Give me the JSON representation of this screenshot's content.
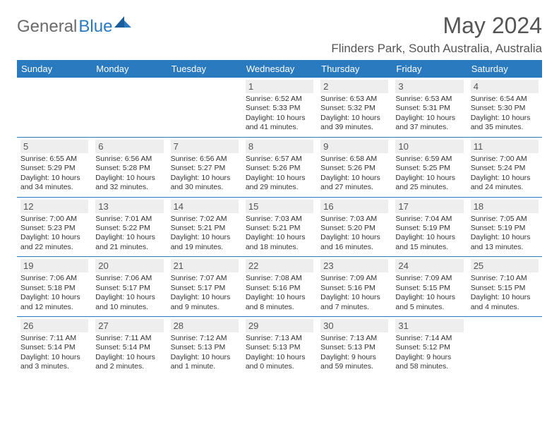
{
  "logo": {
    "general": "General",
    "blue": "Blue"
  },
  "title": "May 2024",
  "location": "Flinders Park, South Australia, Australia",
  "columns": [
    "Sunday",
    "Monday",
    "Tuesday",
    "Wednesday",
    "Thursday",
    "Friday",
    "Saturday"
  ],
  "colors": {
    "header_bg": "#2a7ac0",
    "header_text": "#ffffff",
    "daynum_bg": "#eeeeee",
    "text": "#333333"
  },
  "weeks": [
    [
      null,
      null,
      null,
      {
        "n": "1",
        "sr": "6:52 AM",
        "ss": "5:33 PM",
        "dl": "10 hours and 41 minutes."
      },
      {
        "n": "2",
        "sr": "6:53 AM",
        "ss": "5:32 PM",
        "dl": "10 hours and 39 minutes."
      },
      {
        "n": "3",
        "sr": "6:53 AM",
        "ss": "5:31 PM",
        "dl": "10 hours and 37 minutes."
      },
      {
        "n": "4",
        "sr": "6:54 AM",
        "ss": "5:30 PM",
        "dl": "10 hours and 35 minutes."
      }
    ],
    [
      {
        "n": "5",
        "sr": "6:55 AM",
        "ss": "5:29 PM",
        "dl": "10 hours and 34 minutes."
      },
      {
        "n": "6",
        "sr": "6:56 AM",
        "ss": "5:28 PM",
        "dl": "10 hours and 32 minutes."
      },
      {
        "n": "7",
        "sr": "6:56 AM",
        "ss": "5:27 PM",
        "dl": "10 hours and 30 minutes."
      },
      {
        "n": "8",
        "sr": "6:57 AM",
        "ss": "5:26 PM",
        "dl": "10 hours and 29 minutes."
      },
      {
        "n": "9",
        "sr": "6:58 AM",
        "ss": "5:26 PM",
        "dl": "10 hours and 27 minutes."
      },
      {
        "n": "10",
        "sr": "6:59 AM",
        "ss": "5:25 PM",
        "dl": "10 hours and 25 minutes."
      },
      {
        "n": "11",
        "sr": "7:00 AM",
        "ss": "5:24 PM",
        "dl": "10 hours and 24 minutes."
      }
    ],
    [
      {
        "n": "12",
        "sr": "7:00 AM",
        "ss": "5:23 PM",
        "dl": "10 hours and 22 minutes."
      },
      {
        "n": "13",
        "sr": "7:01 AM",
        "ss": "5:22 PM",
        "dl": "10 hours and 21 minutes."
      },
      {
        "n": "14",
        "sr": "7:02 AM",
        "ss": "5:21 PM",
        "dl": "10 hours and 19 minutes."
      },
      {
        "n": "15",
        "sr": "7:03 AM",
        "ss": "5:21 PM",
        "dl": "10 hours and 18 minutes."
      },
      {
        "n": "16",
        "sr": "7:03 AM",
        "ss": "5:20 PM",
        "dl": "10 hours and 16 minutes."
      },
      {
        "n": "17",
        "sr": "7:04 AM",
        "ss": "5:19 PM",
        "dl": "10 hours and 15 minutes."
      },
      {
        "n": "18",
        "sr": "7:05 AM",
        "ss": "5:19 PM",
        "dl": "10 hours and 13 minutes."
      }
    ],
    [
      {
        "n": "19",
        "sr": "7:06 AM",
        "ss": "5:18 PM",
        "dl": "10 hours and 12 minutes."
      },
      {
        "n": "20",
        "sr": "7:06 AM",
        "ss": "5:17 PM",
        "dl": "10 hours and 10 minutes."
      },
      {
        "n": "21",
        "sr": "7:07 AM",
        "ss": "5:17 PM",
        "dl": "10 hours and 9 minutes."
      },
      {
        "n": "22",
        "sr": "7:08 AM",
        "ss": "5:16 PM",
        "dl": "10 hours and 8 minutes."
      },
      {
        "n": "23",
        "sr": "7:09 AM",
        "ss": "5:16 PM",
        "dl": "10 hours and 7 minutes."
      },
      {
        "n": "24",
        "sr": "7:09 AM",
        "ss": "5:15 PM",
        "dl": "10 hours and 5 minutes."
      },
      {
        "n": "25",
        "sr": "7:10 AM",
        "ss": "5:15 PM",
        "dl": "10 hours and 4 minutes."
      }
    ],
    [
      {
        "n": "26",
        "sr": "7:11 AM",
        "ss": "5:14 PM",
        "dl": "10 hours and 3 minutes."
      },
      {
        "n": "27",
        "sr": "7:11 AM",
        "ss": "5:14 PM",
        "dl": "10 hours and 2 minutes."
      },
      {
        "n": "28",
        "sr": "7:12 AM",
        "ss": "5:13 PM",
        "dl": "10 hours and 1 minute."
      },
      {
        "n": "29",
        "sr": "7:13 AM",
        "ss": "5:13 PM",
        "dl": "10 hours and 0 minutes."
      },
      {
        "n": "30",
        "sr": "7:13 AM",
        "ss": "5:13 PM",
        "dl": "9 hours and 59 minutes."
      },
      {
        "n": "31",
        "sr": "7:14 AM",
        "ss": "5:12 PM",
        "dl": "9 hours and 58 minutes."
      },
      null
    ]
  ],
  "labels": {
    "sunrise": "Sunrise:",
    "sunset": "Sunset:",
    "daylight": "Daylight:"
  }
}
